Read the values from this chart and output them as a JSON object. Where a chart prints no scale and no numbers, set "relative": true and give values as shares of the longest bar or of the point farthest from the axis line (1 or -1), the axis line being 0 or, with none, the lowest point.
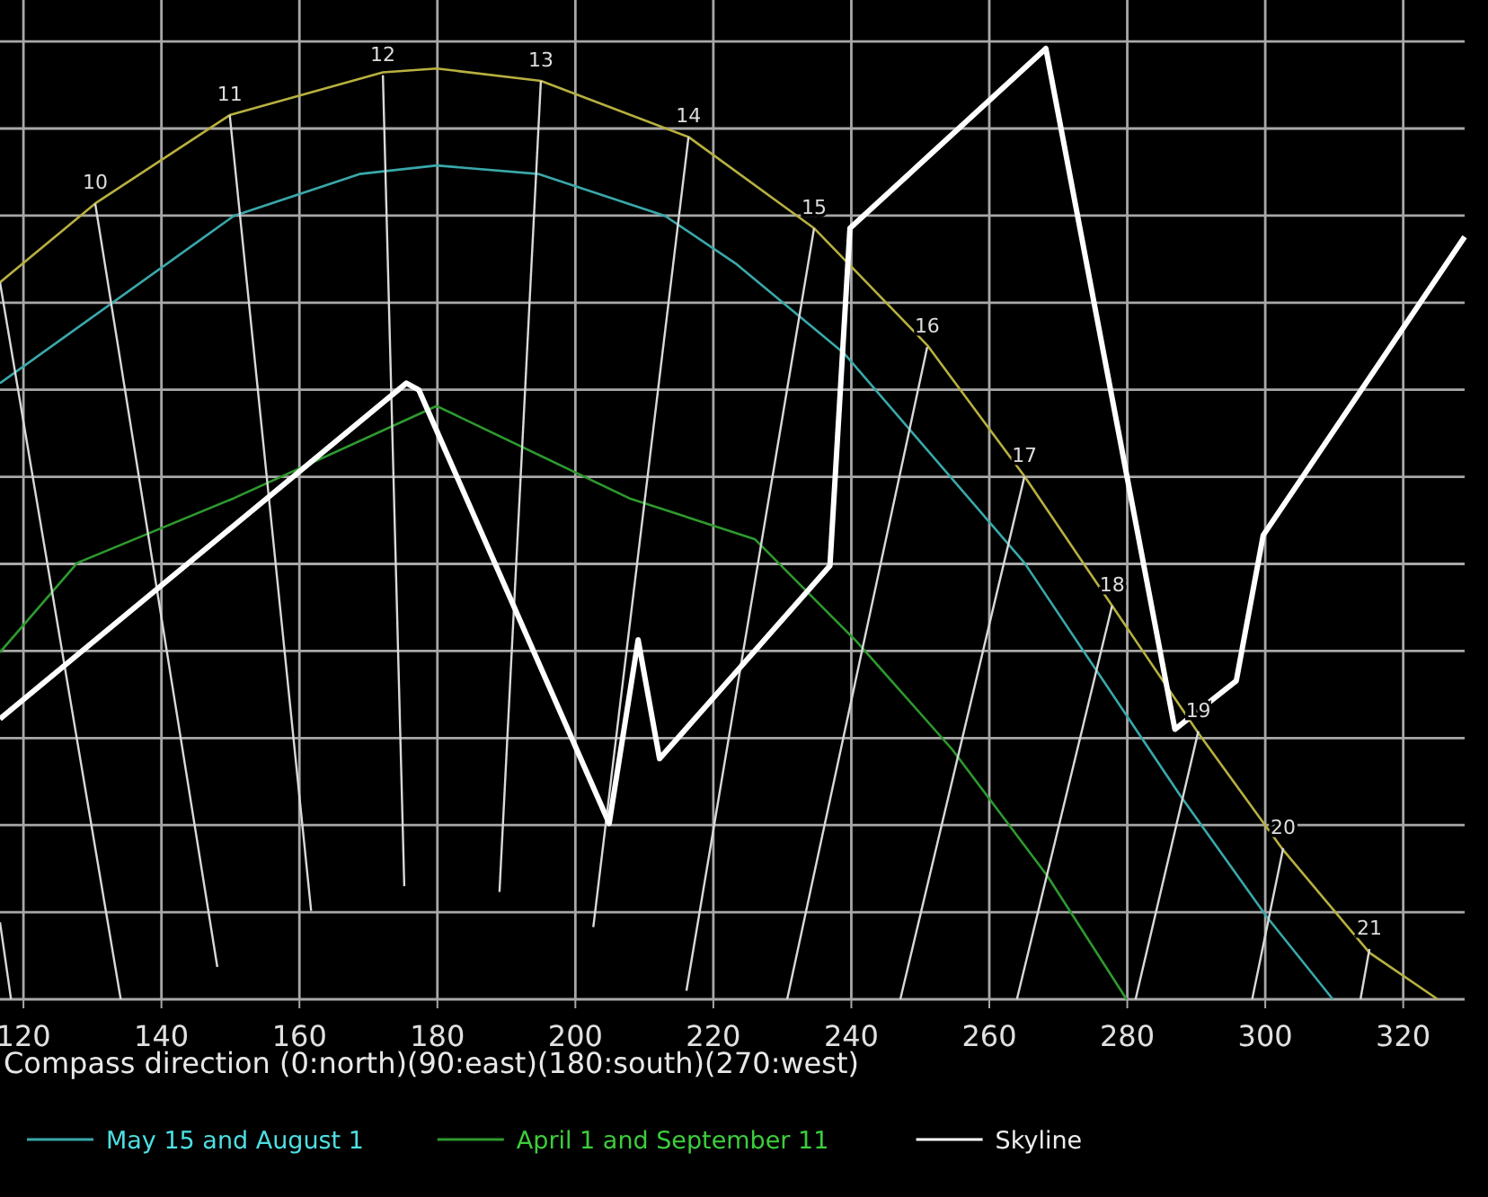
{
  "chart_data": {
    "type": "line",
    "relative": true,
    "xlabel": "Compass direction (0:north)(90:east)(180:south)(270:west)",
    "xlim": [
      116.6,
      328.9
    ],
    "xticks": [
      120,
      140,
      160,
      180,
      200,
      220,
      240,
      260,
      280,
      300,
      320
    ],
    "grid": true,
    "legend": "bottom",
    "series": [
      {
        "color": "#b8b040",
        "x": [
          116.6,
          130.4,
          149.9,
          172.1,
          179.9,
          195.0,
          216.4,
          234.6,
          251.0,
          265.1,
          277.8,
          290.3,
          302.6,
          315.1,
          325.0
        ],
        "values": [
          0.754,
          0.837,
          0.93,
          0.975,
          0.979,
          0.966,
          0.907,
          0.811,
          0.688,
          0.55,
          0.414,
          0.28,
          0.157,
          0.049,
          0
        ]
      },
      {
        "name": "May 15 and August 1",
        "color": "#3aa8aa",
        "x": [
          116.6,
          150.5,
          168.7,
          179.9,
          194.7,
          213.0,
          223.4,
          239.0,
          265.1,
          287.7,
          300.2,
          309.8
        ],
        "values": [
          0.648,
          0.824,
          0.868,
          0.877,
          0.868,
          0.824,
          0.773,
          0.679,
          0.459,
          0.214,
          0.087,
          0
        ]
      },
      {
        "name": "April 1 and September 11",
        "color": "#2e9a2e",
        "x": [
          116.6,
          127.8,
          150.5,
          179.9,
          207.8,
          226.0,
          240.8,
          254.6,
          268.4,
          279.9
        ],
        "values": [
          0.365,
          0.459,
          0.527,
          0.624,
          0.527,
          0.484,
          0.376,
          0.263,
          0.13,
          0
        ]
      },
      {
        "color": "#d9d9d9",
        "x": [
          116.6,
          118.2
        ],
        "values": [
          0.081,
          0
        ]
      },
      {
        "color": "#d9d9d9",
        "x": [
          116.6,
          134.1
        ],
        "values": [
          0.754,
          0
        ]
      },
      {
        "color": "#d9d9d9",
        "x": [
          130.4,
          148.1
        ],
        "values": [
          0.837,
          0.034
        ]
      },
      {
        "color": "#d9d9d9",
        "x": [
          149.9,
          161.7
        ],
        "values": [
          0.93,
          0.093
        ]
      },
      {
        "color": "#d9d9d9",
        "x": [
          172.1,
          175.2
        ],
        "values": [
          0.972,
          0.119
        ]
      },
      {
        "color": "#d9d9d9",
        "x": [
          195.0,
          189.0
        ],
        "values": [
          0.966,
          0.113
        ]
      },
      {
        "color": "#d9d9d9",
        "x": [
          216.4,
          202.6
        ],
        "values": [
          0.907,
          0.076
        ]
      },
      {
        "color": "#d9d9d9",
        "x": [
          234.6,
          216.1
        ],
        "values": [
          0.811,
          0.009
        ]
      },
      {
        "color": "#d9d9d9",
        "x": [
          251.0,
          230.7
        ],
        "values": [
          0.686,
          0
        ]
      },
      {
        "color": "#d9d9d9",
        "x": [
          265.1,
          247.1
        ],
        "values": [
          0.55,
          0
        ]
      },
      {
        "color": "#d9d9d9",
        "x": [
          277.8,
          264.0
        ],
        "values": [
          0.414,
          0
        ]
      },
      {
        "color": "#d9d9d9",
        "x": [
          290.3,
          281.2
        ],
        "values": [
          0.282,
          0
        ]
      },
      {
        "color": "#d9d9d9",
        "x": [
          302.6,
          298.1
        ],
        "values": [
          0.159,
          0
        ]
      },
      {
        "color": "#d9d9d9",
        "x": [
          315.1,
          313.8
        ],
        "values": [
          0.053,
          0
        ]
      },
      {
        "name": "Skyline",
        "color": "#ffffff",
        "x": [
          116.6,
          175.5,
          177.3,
          204.9,
          209.1,
          212.2,
          236.9,
          239.8,
          268.2,
          286.9,
          295.8,
          299.7,
          328.9
        ],
        "values": [
          0.295,
          0.648,
          0.641,
          0.185,
          0.378,
          0.253,
          0.456,
          0.811,
          1,
          0.284,
          0.335,
          0.488,
          0.802
        ]
      }
    ],
    "annotations": [
      {
        "text": "10",
        "x": 130.4,
        "y": 0.837
      },
      {
        "text": "11",
        "x": 149.9,
        "y": 0.93
      },
      {
        "text": "12",
        "x": 172.1,
        "y": 0.972
      },
      {
        "text": "13",
        "x": 195.0,
        "y": 0.966
      },
      {
        "text": "14",
        "x": 216.4,
        "y": 0.907
      },
      {
        "text": "15",
        "x": 234.6,
        "y": 0.811
      },
      {
        "text": "16",
        "x": 251.0,
        "y": 0.686
      },
      {
        "text": "17",
        "x": 265.1,
        "y": 0.55
      },
      {
        "text": "18",
        "x": 277.8,
        "y": 0.414
      },
      {
        "text": "19",
        "x": 290.3,
        "y": 0.282
      },
      {
        "text": "20",
        "x": 302.6,
        "y": 0.159
      },
      {
        "text": "21",
        "x": 315.1,
        "y": 0.053
      }
    ]
  }
}
